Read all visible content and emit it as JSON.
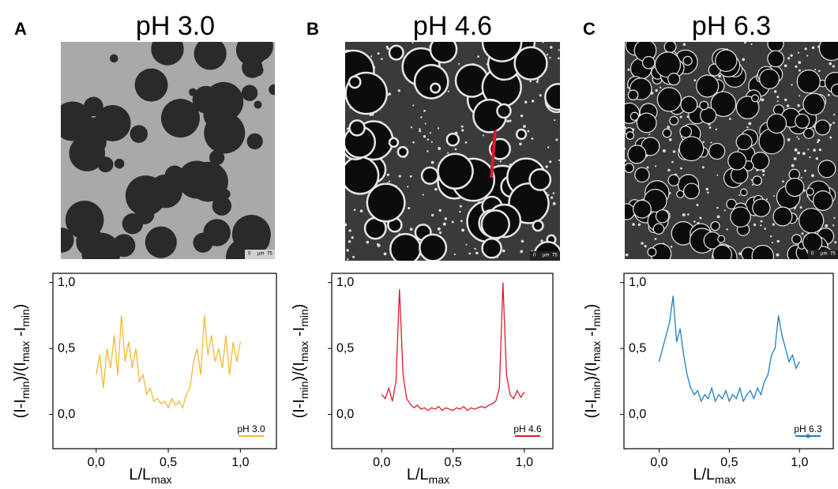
{
  "panels": [
    {
      "letter": "A",
      "title": "pH 3.0",
      "scale_labels": [
        "0",
        "µm",
        "75"
      ],
      "style": "light"
    },
    {
      "letter": "B",
      "title": "pH 4.6",
      "scale_labels": [
        "0",
        "µm",
        "75"
      ],
      "style": "dark"
    },
    {
      "letter": "C",
      "title": "pH 6.3",
      "scale_labels": [
        "0",
        "µm",
        "75"
      ],
      "style": "dark"
    }
  ],
  "chart_data": [
    {
      "type": "line",
      "xlabel": [
        "L/L",
        "max"
      ],
      "ylabel": [
        "(I-I",
        "min",
        ")/(I",
        "max",
        " -I",
        "min",
        ")"
      ],
      "xlim": [
        -0.3,
        1.25
      ],
      "ylim": [
        -0.26,
        1.07
      ],
      "xticks": [
        {
          "value": 0,
          "label": "0,0"
        },
        {
          "value": 0.5,
          "label": "0,5"
        },
        {
          "value": 1,
          "label": "1,0"
        }
      ],
      "yticks": [
        {
          "value": 0,
          "label": "0,0"
        },
        {
          "value": 0.5,
          "label": "0,5"
        },
        {
          "value": 1,
          "label": "1,0"
        }
      ],
      "legend": "lower right",
      "legend_marker": false,
      "x": [
        0,
        0.025,
        0.05,
        0.075,
        0.1,
        0.125,
        0.15,
        0.175,
        0.2,
        0.225,
        0.25,
        0.275,
        0.3,
        0.325,
        0.35,
        0.375,
        0.4,
        0.425,
        0.45,
        0.475,
        0.5,
        0.525,
        0.55,
        0.575,
        0.6,
        0.625,
        0.65,
        0.675,
        0.7,
        0.725,
        0.75,
        0.775,
        0.8,
        0.825,
        0.85,
        0.875,
        0.9,
        0.925,
        0.95,
        0.975,
        1
      ],
      "series": [
        {
          "name": "pH 3.0",
          "color": "#f5b731",
          "values": [
            0.3,
            0.45,
            0.2,
            0.5,
            0.35,
            0.6,
            0.3,
            0.75,
            0.4,
            0.55,
            0.35,
            0.5,
            0.25,
            0.3,
            0.15,
            0.2,
            0.1,
            0.12,
            0.08,
            0.1,
            0.05,
            0.12,
            0.07,
            0.1,
            0.05,
            0.15,
            0.2,
            0.4,
            0.5,
            0.3,
            0.75,
            0.45,
            0.6,
            0.4,
            0.5,
            0.35,
            0.6,
            0.3,
            0.55,
            0.4,
            0.55
          ]
        }
      ]
    },
    {
      "type": "line",
      "xlabel": [
        "L/L",
        "max"
      ],
      "ylabel": [
        "(I-I",
        "min",
        ")/(I",
        "max",
        " -I",
        "min",
        ")"
      ],
      "xlim": [
        -0.35,
        1.2
      ],
      "ylim": [
        -0.26,
        1.07
      ],
      "xticks": [
        {
          "value": 0,
          "label": "0,0"
        },
        {
          "value": 0.5,
          "label": "0,5"
        },
        {
          "value": 1,
          "label": "1,0"
        }
      ],
      "yticks": [
        {
          "value": 0,
          "label": "0,0"
        },
        {
          "value": 0.5,
          "label": "0,5"
        },
        {
          "value": 1,
          "label": "1,0"
        }
      ],
      "legend": "lower right",
      "legend_marker": false,
      "x": [
        0,
        0.025,
        0.05,
        0.075,
        0.1,
        0.125,
        0.15,
        0.175,
        0.2,
        0.225,
        0.25,
        0.275,
        0.3,
        0.325,
        0.35,
        0.375,
        0.4,
        0.425,
        0.45,
        0.475,
        0.5,
        0.525,
        0.55,
        0.575,
        0.6,
        0.625,
        0.65,
        0.675,
        0.7,
        0.725,
        0.75,
        0.775,
        0.8,
        0.825,
        0.85,
        0.875,
        0.9,
        0.925,
        0.95,
        0.975,
        1
      ],
      "series": [
        {
          "name": "pH 4.6",
          "color": "#e0192b",
          "values": [
            0.15,
            0.12,
            0.2,
            0.1,
            0.25,
            0.95,
            0.3,
            0.12,
            0.08,
            0.05,
            0.07,
            0.04,
            0.05,
            0.03,
            0.05,
            0.04,
            0.06,
            0.03,
            0.05,
            0.04,
            0.03,
            0.05,
            0.04,
            0.06,
            0.03,
            0.05,
            0.04,
            0.05,
            0.06,
            0.05,
            0.07,
            0.08,
            0.1,
            0.2,
            1.0,
            0.3,
            0.15,
            0.12,
            0.18,
            0.13,
            0.17
          ]
        }
      ]
    },
    {
      "type": "line",
      "xlabel": [
        "L/L",
        "max"
      ],
      "ylabel": [
        "(I-I",
        "min",
        ")/(I",
        "max",
        " -I",
        "min",
        ")"
      ],
      "xlim": [
        -0.25,
        1.24
      ],
      "ylim": [
        -0.26,
        1.07
      ],
      "xticks": [
        {
          "value": 0,
          "label": "0,0"
        },
        {
          "value": 0.5,
          "label": "0,5"
        },
        {
          "value": 1,
          "label": "1,0"
        }
      ],
      "yticks": [
        {
          "value": 0,
          "label": "0,0"
        },
        {
          "value": 0.5,
          "label": "0,5"
        },
        {
          "value": 1,
          "label": "1,0"
        }
      ],
      "legend": "lower right",
      "legend_marker": true,
      "x": [
        0,
        0.025,
        0.05,
        0.075,
        0.1,
        0.125,
        0.15,
        0.175,
        0.2,
        0.225,
        0.25,
        0.275,
        0.3,
        0.325,
        0.35,
        0.375,
        0.4,
        0.425,
        0.45,
        0.475,
        0.5,
        0.525,
        0.55,
        0.575,
        0.6,
        0.625,
        0.65,
        0.675,
        0.7,
        0.725,
        0.75,
        0.775,
        0.8,
        0.825,
        0.85,
        0.875,
        0.9,
        0.925,
        0.95,
        0.975,
        1
      ],
      "series": [
        {
          "name": "pH 6.3",
          "color": "#1f7fc0",
          "values": [
            0.4,
            0.5,
            0.6,
            0.7,
            0.9,
            0.55,
            0.65,
            0.45,
            0.3,
            0.2,
            0.15,
            0.18,
            0.1,
            0.15,
            0.12,
            0.2,
            0.1,
            0.15,
            0.12,
            0.18,
            0.1,
            0.15,
            0.12,
            0.2,
            0.1,
            0.15,
            0.18,
            0.12,
            0.2,
            0.15,
            0.25,
            0.3,
            0.45,
            0.5,
            0.75,
            0.6,
            0.5,
            0.4,
            0.45,
            0.35,
            0.4
          ]
        }
      ]
    }
  ]
}
